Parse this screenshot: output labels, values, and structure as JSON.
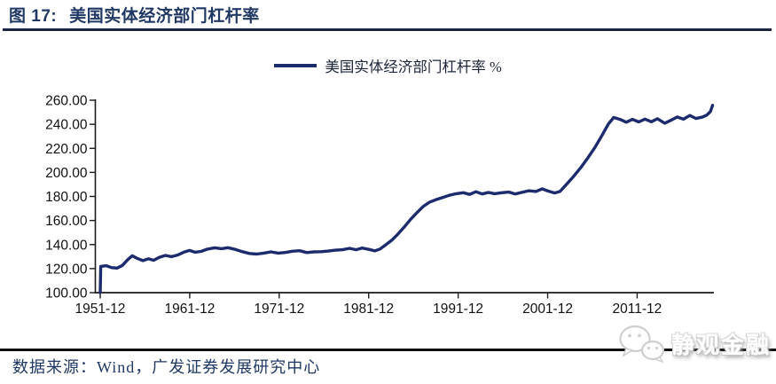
{
  "figure": {
    "title_prefix": "图 17:",
    "title_text": "美国实体经济部门杠杆率",
    "source_text": "数据来源：Wind，广发证券发展研究中心",
    "watermark_text": "静观金融",
    "watermark_icon": "wechat-icon"
  },
  "colors": {
    "line": "#1c2a6e",
    "title": "#1f3864",
    "axis": "#1a1a1a",
    "tick_label": "#111111",
    "rule_top": "#1c2440",
    "rule_bottom": "#101010",
    "source_text": "#1f3864",
    "watermark": "#ffffff"
  },
  "chart_data": {
    "type": "line",
    "title": "",
    "xlabel": "",
    "ylabel": "",
    "grid": false,
    "legend_position": "top-center",
    "legend": [
      {
        "label": "美国实体经济部门杠杆率 %",
        "color": "#1c2a6e"
      }
    ],
    "ylim": [
      100,
      260
    ],
    "xlim": [
      1951.92,
      2020.45
    ],
    "y_ticks": [
      {
        "v": 100,
        "label": "100.00"
      },
      {
        "v": 120,
        "label": "120.00"
      },
      {
        "v": 140,
        "label": "140.00"
      },
      {
        "v": 160,
        "label": "160.00"
      },
      {
        "v": 180,
        "label": "180.00"
      },
      {
        "v": 200,
        "label": "200.00"
      },
      {
        "v": 220,
        "label": "220.00"
      },
      {
        "v": 240,
        "label": "240.00"
      },
      {
        "v": 260,
        "label": "260.00"
      }
    ],
    "x_ticks": [
      {
        "x": 1951.92,
        "label": "1951-12"
      },
      {
        "x": 1961.92,
        "label": "1961-12"
      },
      {
        "x": 1971.92,
        "label": "1971-12"
      },
      {
        "x": 1981.92,
        "label": "1981-12"
      },
      {
        "x": 1991.92,
        "label": "1991-12"
      },
      {
        "x": 2001.92,
        "label": "2001-12"
      },
      {
        "x": 2011.92,
        "label": "2011-12"
      }
    ],
    "series": [
      {
        "name": "美国实体经济部门杠杆率 %",
        "color": "#1c2a6e",
        "points": [
          [
            1951.92,
            100.0
          ],
          [
            1951.98,
            121.8
          ],
          [
            1952.6,
            122.4
          ],
          [
            1953.2,
            120.8
          ],
          [
            1953.8,
            120.4
          ],
          [
            1954.4,
            122.6
          ],
          [
            1955.0,
            127.5
          ],
          [
            1955.5,
            130.7
          ],
          [
            1956.1,
            128.3
          ],
          [
            1956.7,
            126.6
          ],
          [
            1957.3,
            128.2
          ],
          [
            1957.9,
            126.9
          ],
          [
            1958.5,
            129.3
          ],
          [
            1959.2,
            131.0
          ],
          [
            1959.9,
            129.9
          ],
          [
            1960.6,
            131.3
          ],
          [
            1961.3,
            133.8
          ],
          [
            1961.9,
            135.1
          ],
          [
            1962.5,
            133.6
          ],
          [
            1963.2,
            134.3
          ],
          [
            1963.9,
            136.2
          ],
          [
            1964.7,
            137.3
          ],
          [
            1965.5,
            136.6
          ],
          [
            1966.2,
            137.4
          ],
          [
            1967.0,
            136.0
          ],
          [
            1967.8,
            134.1
          ],
          [
            1968.6,
            132.6
          ],
          [
            1969.4,
            132.1
          ],
          [
            1970.2,
            132.9
          ],
          [
            1971.0,
            133.9
          ],
          [
            1971.8,
            132.9
          ],
          [
            1972.6,
            133.4
          ],
          [
            1973.4,
            134.4
          ],
          [
            1974.2,
            134.9
          ],
          [
            1975.0,
            133.3
          ],
          [
            1975.8,
            133.9
          ],
          [
            1976.6,
            134.1
          ],
          [
            1977.4,
            134.6
          ],
          [
            1978.2,
            135.3
          ],
          [
            1979.0,
            135.7
          ],
          [
            1979.8,
            136.9
          ],
          [
            1980.5,
            135.7
          ],
          [
            1981.2,
            137.1
          ],
          [
            1982.0,
            135.9
          ],
          [
            1982.6,
            134.7
          ],
          [
            1983.2,
            136.3
          ],
          [
            1983.8,
            139.6
          ],
          [
            1984.5,
            143.6
          ],
          [
            1985.2,
            148.8
          ],
          [
            1985.9,
            154.6
          ],
          [
            1986.6,
            160.9
          ],
          [
            1987.3,
            166.4
          ],
          [
            1988.0,
            171.6
          ],
          [
            1988.7,
            175.1
          ],
          [
            1989.4,
            177.2
          ],
          [
            1990.1,
            178.9
          ],
          [
            1990.9,
            180.9
          ],
          [
            1991.7,
            182.3
          ],
          [
            1992.5,
            183.1
          ],
          [
            1993.2,
            181.7
          ],
          [
            1993.9,
            183.9
          ],
          [
            1994.6,
            182.1
          ],
          [
            1995.3,
            183.3
          ],
          [
            1996.0,
            182.3
          ],
          [
            1996.8,
            183.1
          ],
          [
            1997.6,
            183.6
          ],
          [
            1998.3,
            182.1
          ],
          [
            1999.0,
            183.3
          ],
          [
            1999.8,
            184.7
          ],
          [
            2000.6,
            184.1
          ],
          [
            2001.3,
            186.3
          ],
          [
            2002.0,
            184.4
          ],
          [
            2002.7,
            182.9
          ],
          [
            2003.3,
            184.1
          ],
          [
            2004.0,
            189.8
          ],
          [
            2004.8,
            196.5
          ],
          [
            2005.6,
            203.8
          ],
          [
            2006.4,
            211.9
          ],
          [
            2007.2,
            220.7
          ],
          [
            2008.0,
            230.9
          ],
          [
            2008.7,
            240.2
          ],
          [
            2009.3,
            245.6
          ],
          [
            2010.0,
            244.1
          ],
          [
            2010.7,
            241.7
          ],
          [
            2011.4,
            244.1
          ],
          [
            2012.1,
            241.9
          ],
          [
            2012.8,
            244.3
          ],
          [
            2013.5,
            242.1
          ],
          [
            2014.2,
            244.6
          ],
          [
            2015.0,
            240.9
          ],
          [
            2015.7,
            243.3
          ],
          [
            2016.4,
            246.1
          ],
          [
            2017.1,
            244.2
          ],
          [
            2017.8,
            247.3
          ],
          [
            2018.5,
            244.8
          ],
          [
            2019.2,
            245.9
          ],
          [
            2019.7,
            247.6
          ],
          [
            2020.1,
            250.5
          ],
          [
            2020.35,
            255.8
          ]
        ]
      }
    ]
  }
}
